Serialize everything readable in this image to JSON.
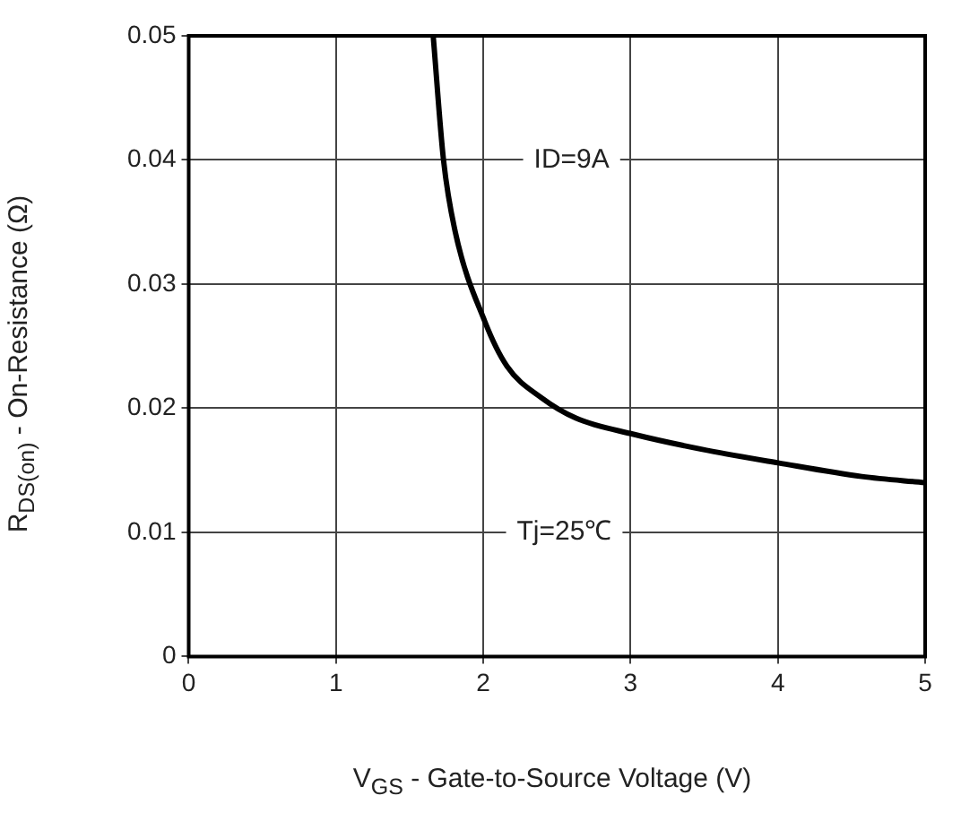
{
  "chart_data": {
    "type": "line",
    "xlabel": "V$_{GS}$ - Gate-to-Source Voltage (V)",
    "ylabel": "R$_{DS(on)}$ - On-Resistance (Ω)",
    "annotations": [
      "ID=9A",
      "Tj=25℃"
    ],
    "series": [
      {
        "color": "#000000",
        "x": [
          1.66,
          1.73,
          1.81,
          2.01,
          2.16,
          2.4,
          2.63,
          3.02,
          3.48,
          4.0,
          4.57,
          5.0
        ],
        "values": [
          0.05,
          0.04,
          0.0342,
          0.027,
          0.0234,
          0.0208,
          0.0192,
          0.0179,
          0.0167,
          0.0156,
          0.0145,
          0.014
        ]
      }
    ],
    "xlim": [
      0,
      5
    ],
    "xticks": [
      0,
      1,
      2,
      3,
      4,
      5
    ],
    "ylim": [
      0,
      0.05
    ],
    "yticks": [
      0,
      0.01,
      0.02,
      0.03,
      0.04,
      0.05
    ],
    "grid": true,
    "marker": "none",
    "line_style": "solid"
  }
}
